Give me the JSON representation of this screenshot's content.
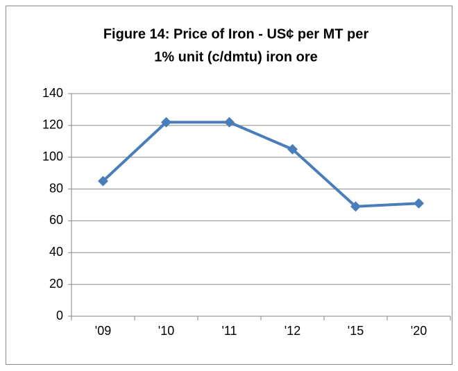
{
  "chart_data": {
    "type": "line",
    "title": [
      "Figure 14: Price of Iron - US¢ per MT per",
      "1% unit (c/dmtu) iron  ore"
    ],
    "categories": [
      "'09",
      "'10",
      "'11",
      "'12",
      "'15",
      "'20"
    ],
    "values": [
      85,
      122,
      122,
      105,
      69,
      71
    ],
    "color": "#4a7ebb",
    "ylim": [
      0,
      140
    ],
    "yticks": [
      0,
      20,
      40,
      60,
      80,
      100,
      120,
      140
    ],
    "grid": true
  }
}
